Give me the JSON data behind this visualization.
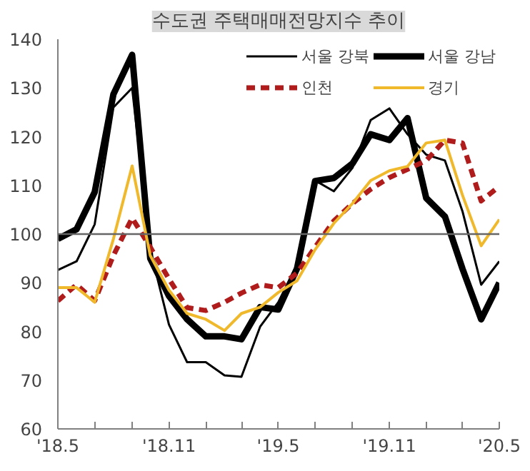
{
  "chart_data": {
    "type": "line",
    "title": "수도권 주택매매전망지수 추이",
    "x": [
      "2018-05",
      "2018-06",
      "2018-07",
      "2018-08",
      "2018-09",
      "2018-10",
      "2018-11",
      "2018-12",
      "2019-01",
      "2019-02",
      "2019-03",
      "2019-04",
      "2019-05",
      "2019-06",
      "2019-07",
      "2019-08",
      "2019-09",
      "2019-10",
      "2019-11",
      "2019-12",
      "2020-01",
      "2020-02",
      "2020-03",
      "2020-04",
      "2020-05"
    ],
    "series": [
      {
        "name": "서울 강북",
        "color": "#000000",
        "line_style": "solid",
        "values": [
          92.6,
          94.4,
          102,
          126,
          130,
          96.8,
          81.4,
          73.7,
          73.7,
          71,
          70.7,
          81,
          86,
          93.8,
          111,
          108.8,
          113.6,
          123.4,
          125.8,
          120.5,
          116.3,
          115.1,
          104.7,
          89.6,
          94.4
        ]
      },
      {
        "name": "서울 강남",
        "color": "#000000",
        "line_style": "solid",
        "values": [
          99,
          101,
          108.6,
          128.7,
          136.8,
          95,
          87.3,
          82.5,
          79,
          79,
          78.4,
          85,
          84.5,
          92.9,
          110.9,
          111.5,
          114.5,
          120.5,
          119.3,
          123.8,
          107.4,
          103.6,
          92.9,
          82.5,
          90
        ]
      },
      {
        "name": "인천",
        "color": "#b01c1c",
        "line_style": "dashed",
        "values": [
          86.3,
          89.6,
          86.3,
          95.6,
          103.3,
          97.3,
          90.8,
          84.9,
          84.3,
          86,
          87.9,
          89.6,
          89,
          92,
          97.3,
          102.7,
          106.3,
          109.2,
          111.6,
          113.3,
          115.1,
          119.3,
          118.7,
          106.8,
          109.8
        ]
      },
      {
        "name": "경기",
        "color": "#f0b92c",
        "line_style": "solid",
        "values": [
          89,
          89,
          86,
          99,
          114,
          95.6,
          88.5,
          83.7,
          82.5,
          80.2,
          83.7,
          85,
          88,
          90.4,
          96.8,
          102.2,
          106.3,
          111,
          113,
          113.9,
          118.7,
          119.3,
          108,
          97.6,
          103
        ]
      }
    ],
    "xlim": [
      "2018-05",
      "2020-05"
    ],
    "xticks": [
      {
        "value": "2018-05",
        "label": "'18.5"
      },
      {
        "value": "2018-07",
        "label": null
      },
      {
        "value": "2018-09",
        "label": null
      },
      {
        "value": "2018-11",
        "label": "'18.11"
      },
      {
        "value": "2019-01",
        "label": null
      },
      {
        "value": "2019-03",
        "label": null
      },
      {
        "value": "2019-05",
        "label": "'19.5"
      },
      {
        "value": "2019-07",
        "label": null
      },
      {
        "value": "2019-09",
        "label": null
      },
      {
        "value": "2019-11",
        "label": "'19.11"
      },
      {
        "value": "2020-01",
        "label": null
      },
      {
        "value": "2020-03",
        "label": null
      },
      {
        "value": "2020-05",
        "label": "'20.5"
      }
    ],
    "ylim": [
      60,
      140
    ],
    "yticks": [
      60,
      70,
      80,
      90,
      100,
      110,
      120,
      130,
      140
    ],
    "ref_lines": [
      {
        "axis": "y",
        "value": 100,
        "color": "#666666"
      }
    ],
    "grid": false,
    "legend": "top right"
  }
}
